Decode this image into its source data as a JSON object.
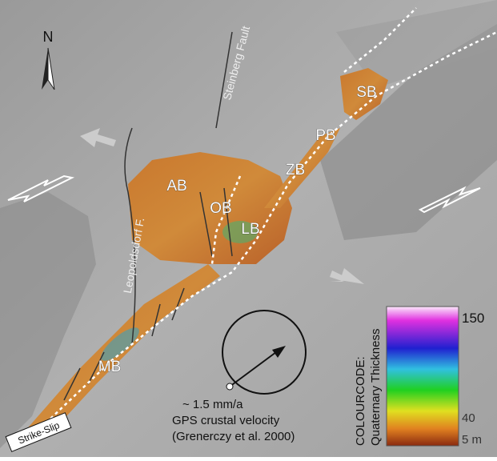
{
  "map": {
    "north": "N",
    "faults": [
      "Steinberg Fault",
      "Leopoldsdorf F."
    ],
    "basins": [
      "AB",
      "OB",
      "LB",
      "ZB",
      "PB",
      "SB",
      "MB"
    ],
    "strike_slip": "Strike-Slip",
    "gps": {
      "rate": "~ 1.5 mm/a",
      "label": "GPS crustal velocity",
      "source": "(Grenerczy et al. 2000)"
    },
    "colorbar": {
      "title": "COLOURCODE:",
      "subtitle": "Quaternary Thickness",
      "labels": [
        "150",
        "40",
        "5 m"
      ]
    }
  }
}
